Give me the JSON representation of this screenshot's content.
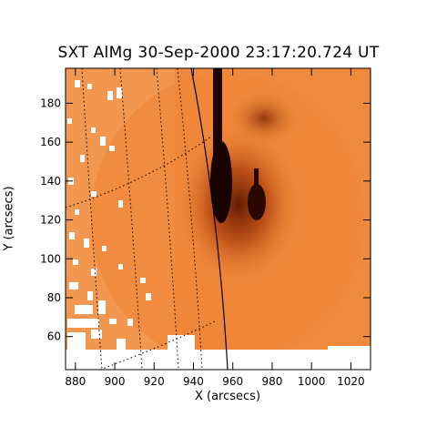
{
  "title": "SXT AlMg 30-Sep-2000 23:17:20.724 UT",
  "x_axis": {
    "label": "X (arcsecs)",
    "range": [
      875,
      1030
    ],
    "ticks": [
      "880",
      "900",
      "920",
      "940",
      "960",
      "980",
      "1000",
      "1020"
    ],
    "tick_values": [
      880,
      900,
      920,
      940,
      960,
      980,
      1000,
      1020
    ]
  },
  "y_axis": {
    "label": "Y (arcsecs)",
    "range": [
      43,
      198
    ],
    "ticks": [
      "60",
      "80",
      "100",
      "120",
      "140",
      "160",
      "180"
    ],
    "tick_values": [
      60,
      80,
      100,
      120,
      140,
      160,
      180
    ]
  },
  "colors": {
    "background_map": "#f08a3c",
    "map_light": "#f5a66a",
    "map_dark": "#2a0a00",
    "axes": "#000000"
  }
}
